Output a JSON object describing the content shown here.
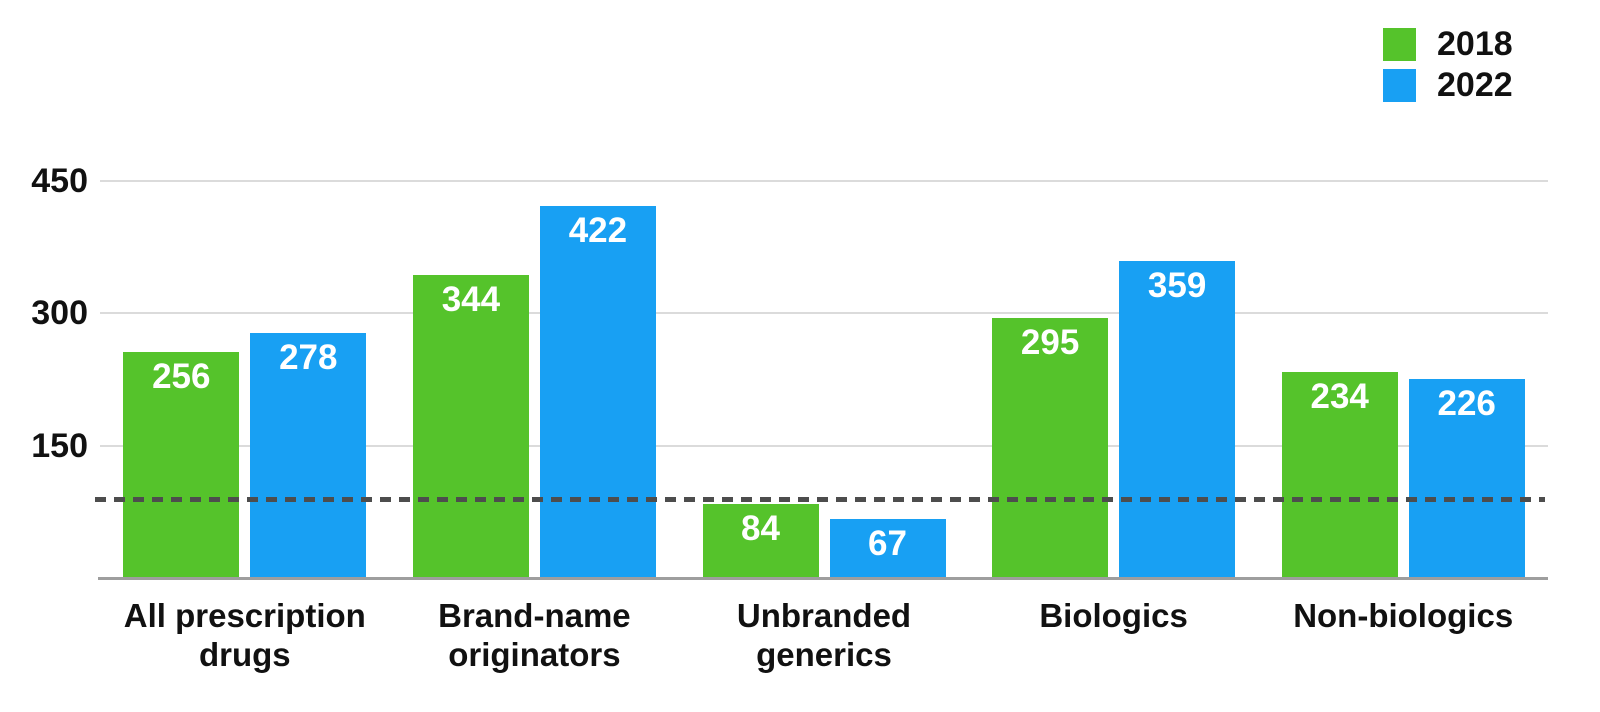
{
  "chart_data": {
    "type": "bar",
    "title": "",
    "categories": [
      "All prescription drugs",
      "Brand-name originators",
      "Unbranded generics",
      "Biologics",
      "Non-biologics"
    ],
    "category_labels": [
      "All prescription\ndrugs",
      "Brand-name\noriginators",
      "Unbranded\ngenerics",
      "Biologics",
      "Non-biologics"
    ],
    "series": [
      {
        "name": "2018",
        "color": "#55C32B",
        "values": [
          256,
          344,
          84,
          295,
          234
        ]
      },
      {
        "name": "2022",
        "color": "#18A0F3",
        "values": [
          278,
          422,
          67,
          359,
          226
        ]
      }
    ],
    "y_ticks": [
      450,
      300,
      150
    ],
    "ylim": [
      0,
      450
    ],
    "reference_line": {
      "value": 90,
      "style": "dashed",
      "color": "#4D4D4D"
    },
    "grid": true,
    "legend_position": "top-right",
    "value_label_style": "white, inside top of bar",
    "colors": {
      "gridline": "#DBDBDB",
      "axis_baseline": "#9E9E9E",
      "text": "#111111",
      "background": "#FFFFFF"
    }
  }
}
